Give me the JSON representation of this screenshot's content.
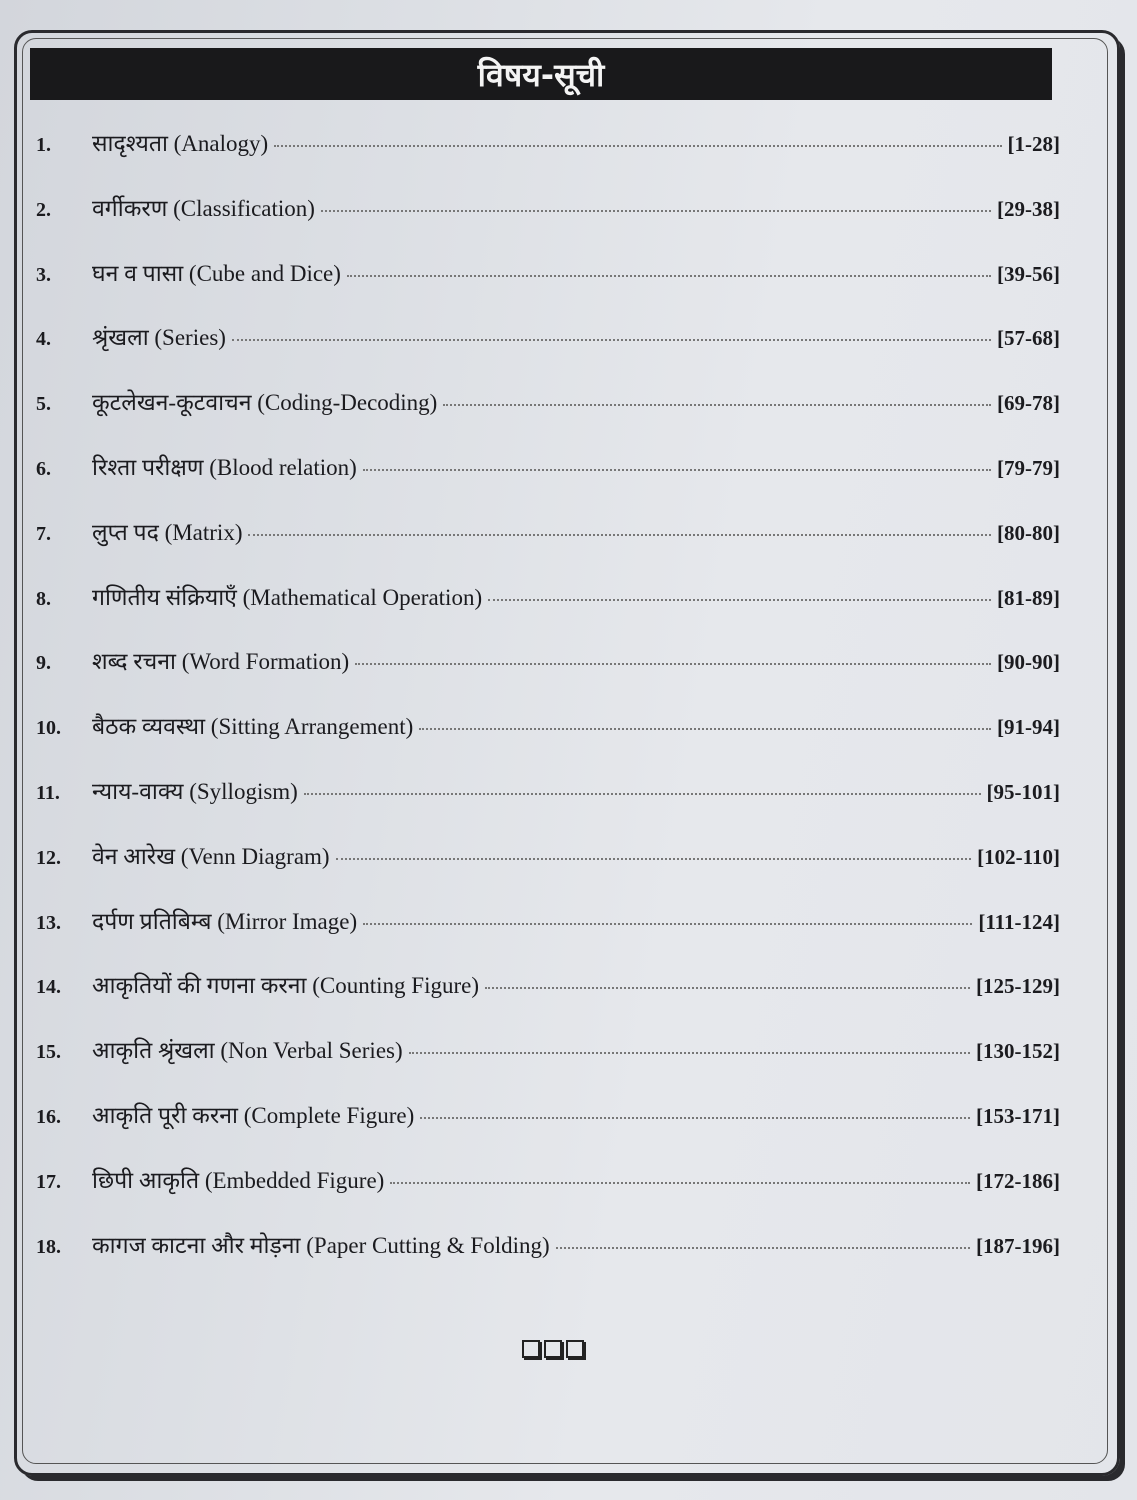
{
  "title": "विषय-सूची",
  "entries": [
    {
      "num": "1.",
      "label": "सादृश्यता (Analogy)",
      "pages": "[1-28]"
    },
    {
      "num": "2.",
      "label": "वर्गीकरण  (Classification)",
      "pages": "[29-38]"
    },
    {
      "num": "3.",
      "label": "घन व पासा (Cube and Dice)",
      "pages": "[39-56]"
    },
    {
      "num": "4.",
      "label": "श्रृंखला  (Series)",
      "pages": "[57-68]"
    },
    {
      "num": "5.",
      "label": "कूटलेखन-कूटवाचन (Coding-Decoding)",
      "pages": "[69-78]"
    },
    {
      "num": "6.",
      "label": "रिश्ता परीक्षण (Blood relation)",
      "pages": "[79-79]"
    },
    {
      "num": "7.",
      "label": "लुप्त पद (Matrix)",
      "pages": "[80-80]"
    },
    {
      "num": "8.",
      "label": "गणितीय संक्रियाएँ (Mathematical Operation)",
      "pages": "[81-89]"
    },
    {
      "num": "9.",
      "label": "शब्द रचना (Word Formation)",
      "pages": "[90-90]"
    },
    {
      "num": "10.",
      "label": "बैठक व्यवस्था (Sitting Arrangement)",
      "pages": "[91-94]"
    },
    {
      "num": "11.",
      "label": "न्याय-वाक्य  (Syllogism)",
      "pages": "[95-101]"
    },
    {
      "num": "12.",
      "label": "वेन आरेख (Venn Diagram)",
      "pages": "[102-110]"
    },
    {
      "num": "13.",
      "label": "दर्पण प्रतिबिम्ब (Mirror Image)",
      "pages": "[111-124]"
    },
    {
      "num": "14.",
      "label": "आकृतियों की गणना करना (Counting Figure)",
      "pages": "[125-129]"
    },
    {
      "num": "15.",
      "label": "आकृति श्रृंखला (Non Verbal Series)",
      "pages": "[130-152]"
    },
    {
      "num": "16.",
      "label": "आकृति पूरी करना (Complete Figure)",
      "pages": "[153-171]"
    },
    {
      "num": "17.",
      "label": "छिपी आकृति (Embedded Figure)",
      "pages": "[172-186]"
    },
    {
      "num": "18.",
      "label": "कागज काटना और मोड़ना (Paper Cutting & Folding)",
      "pages": "[187-196]"
    }
  ],
  "end_mark_icon": "three-hollow-squares"
}
